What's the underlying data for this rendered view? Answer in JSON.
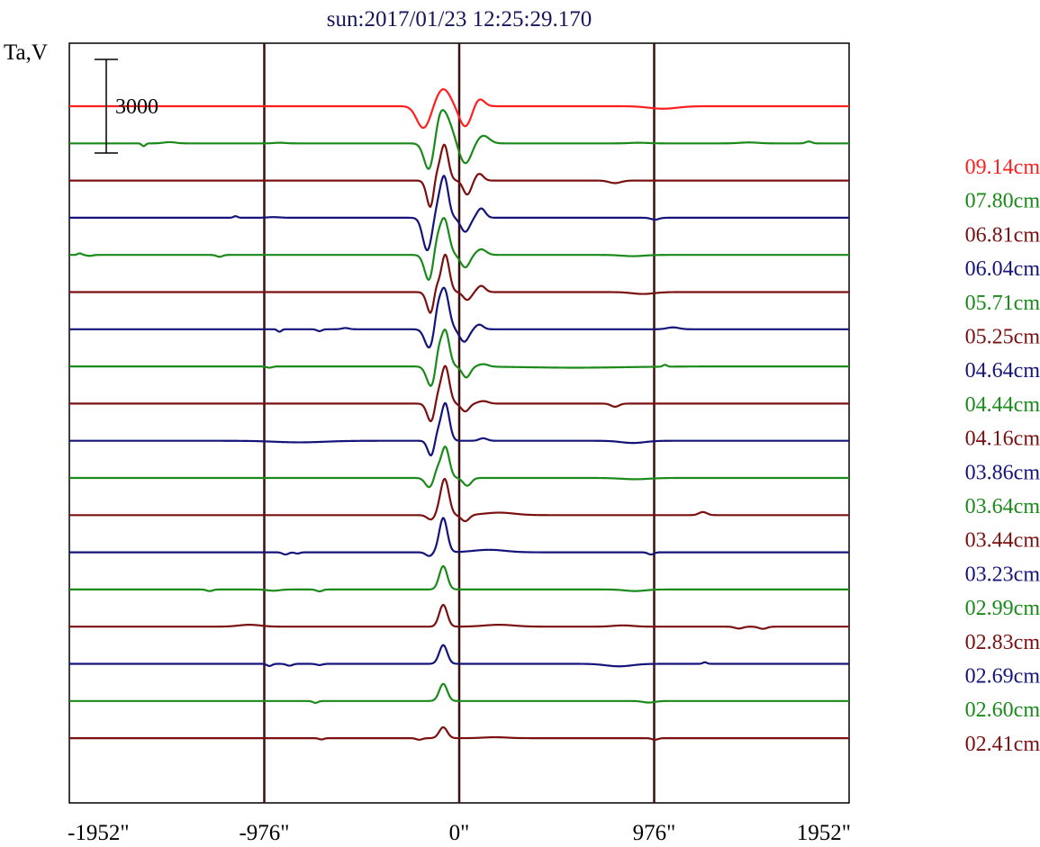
{
  "chart_data": {
    "type": "line",
    "title": "sun:2017/01/23 12:25:29.170",
    "ylabel": "Ta,V",
    "xlabel": "",
    "x_unit": "arcsec",
    "x_ticks": [
      "-1952\"",
      "-976\"",
      "0\"",
      "976\"",
      "1952\""
    ],
    "x_tick_values": [
      -1952,
      -976,
      0,
      976,
      1952
    ],
    "xlim": [
      -1952,
      1952
    ],
    "limb_markers": [
      -976,
      0,
      976
    ],
    "scale_bar": {
      "value": 3000,
      "label": "3000"
    },
    "colors": {
      "frame": "#000000",
      "marker": "#3a1010",
      "title": "#16165a",
      "ylabel": "#000000"
    },
    "series": [
      {
        "name": "09.14cm",
        "color": "#ff1f1f",
        "features": [
          [
            -190,
            -500,
            60
          ],
          [
            -160,
            -300,
            55
          ],
          [
            -80,
            550,
            70
          ],
          [
            30,
            -650,
            60
          ],
          [
            100,
            250,
            50
          ],
          [
            1020,
            -80,
            140
          ]
        ]
      },
      {
        "name": "07.80cm",
        "color": "#1a8a1a",
        "features": [
          [
            -1580,
            -90,
            18
          ],
          [
            -1450,
            40,
            60
          ],
          [
            -900,
            20,
            60
          ],
          [
            -150,
            -900,
            50
          ],
          [
            -100,
            400,
            45
          ],
          [
            -70,
            850,
            70
          ],
          [
            30,
            -650,
            60
          ],
          [
            120,
            250,
            60
          ],
          [
            900,
            20,
            90
          ],
          [
            1450,
            30,
            90
          ],
          [
            1750,
            60,
            30
          ]
        ]
      },
      {
        "name": "06.81cm",
        "color": "#7a1010",
        "features": [
          [
            -140,
            -1000,
            40
          ],
          [
            -120,
            500,
            30
          ],
          [
            -75,
            1150,
            40
          ],
          [
            40,
            -450,
            40
          ],
          [
            100,
            220,
            40
          ],
          [
            780,
            -80,
            60
          ]
        ]
      },
      {
        "name": "06.04cm",
        "color": "#14147a",
        "features": [
          [
            -1120,
            50,
            20
          ],
          [
            -930,
            20,
            60
          ],
          [
            -160,
            -1050,
            45
          ],
          [
            -110,
            300,
            35
          ],
          [
            -75,
            1300,
            40
          ],
          [
            30,
            -450,
            45
          ],
          [
            110,
            300,
            40
          ],
          [
            980,
            -60,
            40
          ]
        ]
      },
      {
        "name": "05.71cm",
        "color": "#1a8a1a",
        "features": [
          [
            -1900,
            50,
            20
          ],
          [
            -1850,
            -30,
            30
          ],
          [
            -1200,
            -60,
            30
          ],
          [
            -150,
            -850,
            45
          ],
          [
            -115,
            450,
            35
          ],
          [
            -75,
            1150,
            45
          ],
          [
            30,
            -400,
            45
          ],
          [
            110,
            180,
            50
          ],
          [
            870,
            -40,
            110
          ]
        ]
      },
      {
        "name": "05.25cm",
        "color": "#7a1010",
        "features": [
          [
            -140,
            -750,
            40
          ],
          [
            -118,
            400,
            28
          ],
          [
            -70,
            1200,
            40
          ],
          [
            40,
            -250,
            40
          ],
          [
            110,
            200,
            40
          ],
          [
            920,
            -60,
            110
          ]
        ]
      },
      {
        "name": "04.64cm",
        "color": "#14147a",
        "features": [
          [
            -900,
            -80,
            20
          ],
          [
            -700,
            -60,
            25
          ],
          [
            -570,
            40,
            35
          ],
          [
            -150,
            -600,
            45
          ],
          [
            -110,
            450,
            30
          ],
          [
            -75,
            1300,
            45
          ],
          [
            25,
            -400,
            45
          ],
          [
            100,
            150,
            40
          ],
          [
            1070,
            60,
            60
          ]
        ]
      },
      {
        "name": "04.44cm",
        "color": "#1a8a1a",
        "features": [
          [
            -950,
            -40,
            30
          ],
          [
            -140,
            -650,
            45
          ],
          [
            -105,
            500,
            30
          ],
          [
            -70,
            1150,
            40
          ],
          [
            35,
            -350,
            40
          ],
          [
            120,
            80,
            50
          ],
          [
            580,
            -40,
            500
          ],
          [
            1030,
            60,
            20
          ]
        ]
      },
      {
        "name": "04.16cm",
        "color": "#7a1010",
        "features": [
          [
            -140,
            -600,
            40
          ],
          [
            -110,
            300,
            30
          ],
          [
            -70,
            1200,
            40
          ],
          [
            30,
            -250,
            40
          ],
          [
            120,
            80,
            50
          ],
          [
            780,
            -100,
            40
          ]
        ]
      },
      {
        "name": "03.86cm",
        "color": "#14147a",
        "features": [
          [
            -800,
            -50,
            250
          ],
          [
            -140,
            -500,
            35
          ],
          [
            -110,
            250,
            30
          ],
          [
            -70,
            1200,
            40
          ],
          [
            120,
            80,
            40
          ],
          [
            870,
            -70,
            120
          ]
        ]
      },
      {
        "name": "03.64cm",
        "color": "#1a8a1a",
        "features": [
          [
            -150,
            -300,
            40
          ],
          [
            -110,
            250,
            30
          ],
          [
            -70,
            1000,
            40
          ],
          [
            40,
            -250,
            40
          ],
          [
            880,
            -40,
            140
          ]
        ]
      },
      {
        "name": "03.44cm",
        "color": "#7a1010",
        "features": [
          [
            -140,
            -150,
            40
          ],
          [
            -90,
            250,
            40
          ],
          [
            -70,
            1000,
            40
          ],
          [
            30,
            -200,
            40
          ],
          [
            200,
            80,
            150
          ],
          [
            1220,
            100,
            40
          ]
        ]
      },
      {
        "name": "03.23cm",
        "color": "#14147a",
        "features": [
          [
            -870,
            -70,
            30
          ],
          [
            -810,
            -40,
            25
          ],
          [
            -150,
            -120,
            35
          ],
          [
            -80,
            1100,
            40
          ],
          [
            150,
            80,
            160
          ],
          [
            960,
            -70,
            30
          ]
        ]
      },
      {
        "name": "02.99cm",
        "color": "#1a8a1a",
        "features": [
          [
            -1250,
            -50,
            30
          ],
          [
            -930,
            -40,
            60
          ],
          [
            -700,
            -60,
            30
          ],
          [
            -80,
            750,
            40
          ],
          [
            880,
            -50,
            100
          ]
        ]
      },
      {
        "name": "02.83cm",
        "color": "#7a1010",
        "features": [
          [
            -1050,
            60,
            110
          ],
          [
            -80,
            700,
            40
          ],
          [
            200,
            60,
            150
          ],
          [
            1400,
            -60,
            40
          ],
          [
            1520,
            -70,
            40
          ],
          [
            820,
            40,
            100
          ]
        ]
      },
      {
        "name": "02.69cm",
        "color": "#14147a",
        "features": [
          [
            -950,
            -70,
            25
          ],
          [
            -850,
            -60,
            30
          ],
          [
            -700,
            -40,
            30
          ],
          [
            -80,
            600,
            40
          ],
          [
            800,
            -80,
            130
          ],
          [
            1230,
            50,
            20
          ]
        ]
      },
      {
        "name": "02.60cm",
        "color": "#1a8a1a",
        "features": [
          [
            -720,
            -60,
            25
          ],
          [
            -80,
            550,
            40
          ],
          [
            950,
            -50,
            60
          ]
        ]
      },
      {
        "name": "02.41cm",
        "color": "#7a1010",
        "features": [
          [
            -690,
            -40,
            25
          ],
          [
            -200,
            -50,
            30
          ],
          [
            -80,
            350,
            40
          ],
          [
            180,
            30,
            120
          ],
          [
            980,
            -50,
            30
          ]
        ]
      }
    ]
  }
}
